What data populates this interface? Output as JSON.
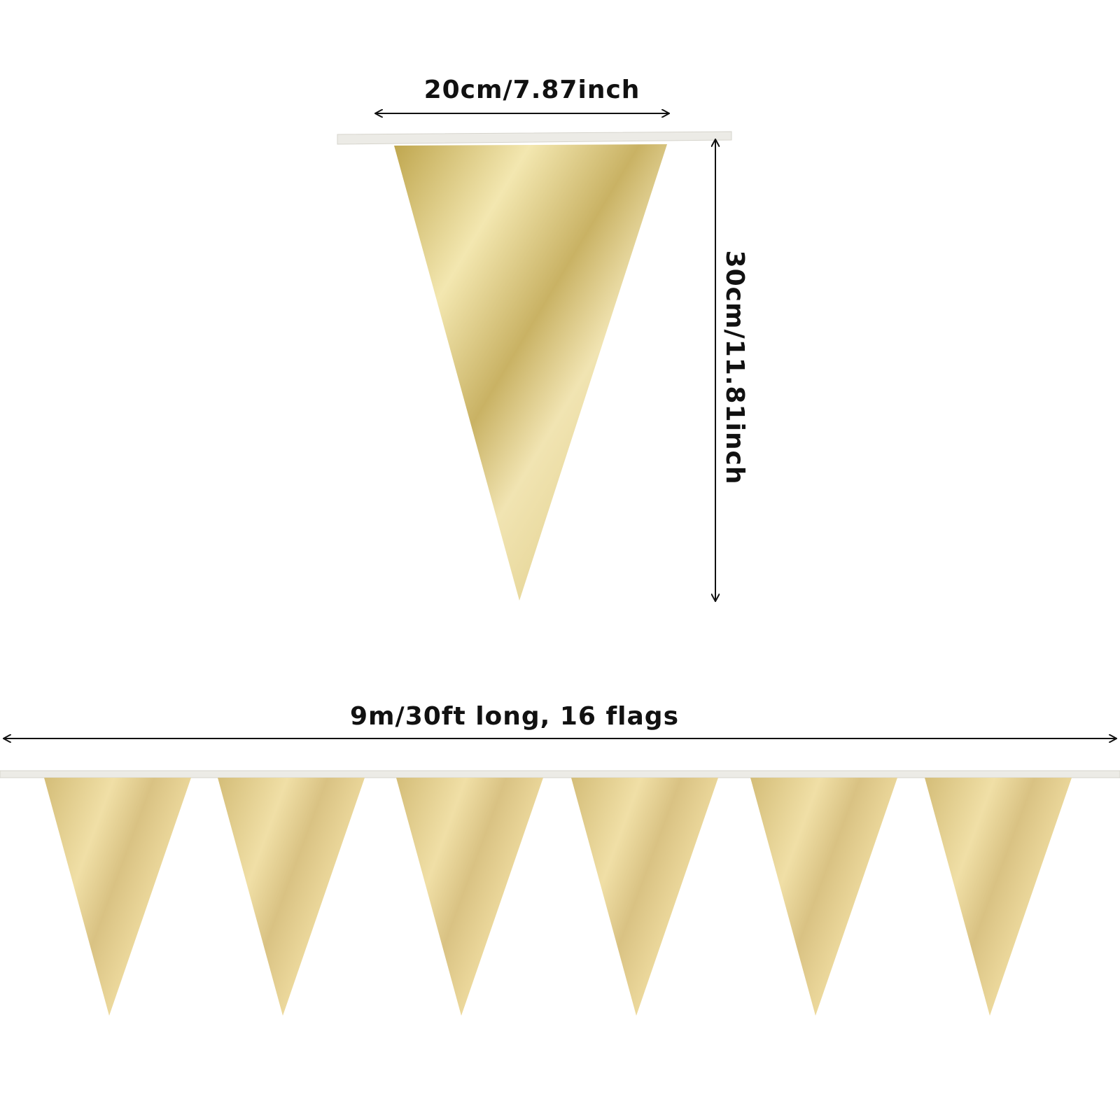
{
  "dimensions": {
    "width": "20cm/7.87inch",
    "height": "30cm/11.81inch",
    "length": "9m/30ft long, 16 flags"
  }
}
